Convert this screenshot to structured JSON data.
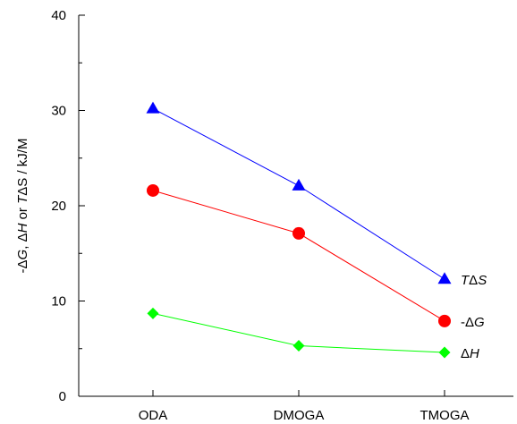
{
  "chart_data": {
    "type": "line",
    "title": "",
    "xlabel": "",
    "ylabel": "-ΔG, ΔH or TΔS / kJ/M",
    "ylabel_parts": [
      {
        "text": "-Δ",
        "italic": false
      },
      {
        "text": "G",
        "italic": true
      },
      {
        "text": ", Δ",
        "italic": false
      },
      {
        "text": "H",
        "italic": true
      },
      {
        "text": " or ",
        "italic": false
      },
      {
        "text": "T",
        "italic": true
      },
      {
        "text": "ΔS / kJ/M",
        "italic": false
      }
    ],
    "categories": [
      "ODA",
      "DMOGA",
      "TMOGA"
    ],
    "ylim": [
      0,
      40
    ],
    "yticks": [
      0,
      10,
      20,
      30,
      40
    ],
    "ytick_labels": [
      "0",
      "10",
      "20",
      "30",
      "40"
    ],
    "grid": false,
    "series": [
      {
        "name": "TΔS",
        "name_parts": [
          {
            "text": "T",
            "italic": true
          },
          {
            "text": "Δ",
            "italic": false
          },
          {
            "text": "S",
            "italic": true
          }
        ],
        "values": [
          30.2,
          22.1,
          12.3
        ],
        "color": "#0000ff",
        "marker": "triangle"
      },
      {
        "name": "-ΔG",
        "name_parts": [
          {
            "text": "-Δ",
            "italic": false
          },
          {
            "text": "G",
            "italic": true
          }
        ],
        "values": [
          21.6,
          17.1,
          7.9
        ],
        "color": "#ff0000",
        "marker": "circle"
      },
      {
        "name": "ΔH",
        "name_parts": [
          {
            "text": "Δ",
            "italic": false
          },
          {
            "text": "H",
            "italic": true
          }
        ],
        "values": [
          8.7,
          5.3,
          4.6
        ],
        "color": "#00ff00",
        "marker": "diamond"
      }
    ]
  }
}
